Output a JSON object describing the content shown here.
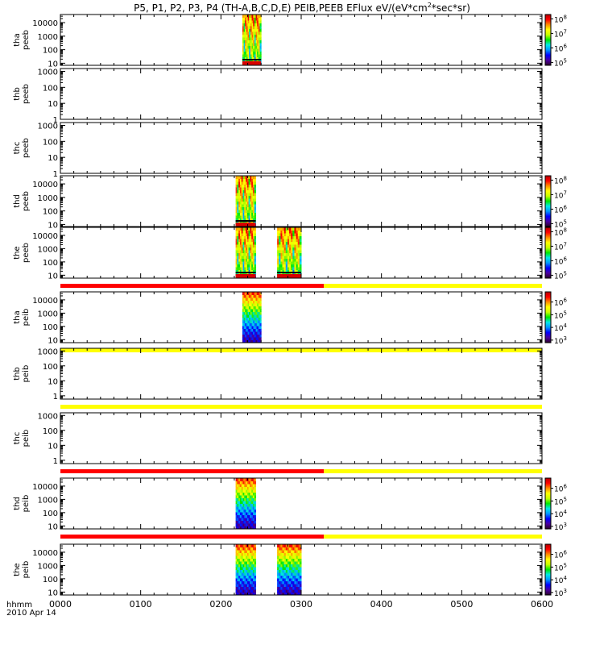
{
  "title": {
    "main": "P5, P1, P2, P3, P4 (TH-A,B,C,D,E) PEIB,PEEB EFlux eV/(eV*cm",
    "sup": "2",
    "end": "*sec*sr)"
  },
  "colormap_stops": [
    "#2b0028",
    "#4a00a0",
    "#0000ff",
    "#0096ff",
    "#00e8e8",
    "#00e800",
    "#c8ff00",
    "#ffff00",
    "#ff8c00",
    "#ff0000",
    "#b40000"
  ],
  "state_colors": {
    "red": "#ff0000",
    "yellow": "#ffff00",
    "black": "#000000"
  },
  "xaxis": {
    "range_minutes": [
      0,
      360
    ],
    "ticks": [
      {
        "value": 0,
        "label": "0000"
      },
      {
        "value": 60,
        "label": "0100"
      },
      {
        "value": 120,
        "label": "0200"
      },
      {
        "value": 180,
        "label": "0300"
      },
      {
        "value": 240,
        "label": "0400"
      },
      {
        "value": 300,
        "label": "0500"
      },
      {
        "value": 360,
        "label": "0600"
      }
    ],
    "left_label": "hhmm",
    "date": "2010 Apr 14"
  },
  "chart_data": [
    {
      "type": "heatmap",
      "probe": "tha",
      "instrument": "peeb",
      "ylabel": [
        "tha",
        "peeb"
      ],
      "yscale": "log",
      "yrange": [
        7,
        40000
      ],
      "yticks": [
        {
          "v": 10,
          "label": "10"
        },
        {
          "v": 100,
          "label": "100"
        },
        {
          "v": 1000,
          "label": "1000"
        },
        {
          "v": 10000,
          "label": "10000"
        }
      ],
      "colorbar": {
        "labels": [
          {
            "e": 5,
            "label": "10",
            "sup": "5"
          },
          {
            "e": 6,
            "label": "10",
            "sup": "6"
          },
          {
            "e": 7,
            "label": "10",
            "sup": "7"
          },
          {
            "e": 8,
            "label": "10",
            "sup": "8"
          }
        ],
        "min_exp": 4.8,
        "max_exp": 8.3
      },
      "intervals": [
        {
          "t0": 136,
          "t1": 150,
          "low_red": true
        }
      ],
      "state_bar": null
    },
    {
      "type": "heatmap",
      "probe": "thb",
      "instrument": "peeb",
      "ylabel": [
        "thb",
        "peeb"
      ],
      "yscale": "log",
      "yrange": [
        1,
        1500
      ],
      "yticks": [
        {
          "v": 1,
          "label": "1"
        },
        {
          "v": 10,
          "label": "10"
        },
        {
          "v": 100,
          "label": "100"
        },
        {
          "v": 1000,
          "label": "1000"
        }
      ],
      "colorbar": null,
      "intervals": [],
      "state_bar": null
    },
    {
      "type": "heatmap",
      "probe": "thc",
      "instrument": "peeb",
      "ylabel": [
        "thc",
        "peeb"
      ],
      "yscale": "log",
      "yrange": [
        1,
        1500
      ],
      "yticks": [
        {
          "v": 1,
          "label": "1"
        },
        {
          "v": 10,
          "label": "10"
        },
        {
          "v": 100,
          "label": "100"
        },
        {
          "v": 1000,
          "label": "1000"
        }
      ],
      "colorbar": null,
      "intervals": [],
      "state_bar": null
    },
    {
      "type": "heatmap",
      "probe": "thd",
      "instrument": "peeb",
      "ylabel": [
        "thd",
        "peeb"
      ],
      "yscale": "log",
      "yrange": [
        7,
        40000
      ],
      "yticks": [
        {
          "v": 10,
          "label": "10"
        },
        {
          "v": 100,
          "label": "100"
        },
        {
          "v": 1000,
          "label": "1000"
        },
        {
          "v": 10000,
          "label": "10000"
        }
      ],
      "colorbar": {
        "labels": [
          {
            "e": 5,
            "label": "10",
            "sup": "5"
          },
          {
            "e": 6,
            "label": "10",
            "sup": "6"
          },
          {
            "e": 7,
            "label": "10",
            "sup": "7"
          },
          {
            "e": 8,
            "label": "10",
            "sup": "8"
          }
        ],
        "min_exp": 4.8,
        "max_exp": 8.3
      },
      "intervals": [
        {
          "t0": 131,
          "t1": 146,
          "low_red": true
        }
      ],
      "state_bar": null
    },
    {
      "type": "heatmap",
      "probe": "the",
      "instrument": "peeb",
      "ylabel": [
        "the",
        "peeb"
      ],
      "yscale": "log",
      "yrange": [
        6,
        40000
      ],
      "yticks": [
        {
          "v": 10,
          "label": "10"
        },
        {
          "v": 100,
          "label": "100"
        },
        {
          "v": 1000,
          "label": "1000"
        },
        {
          "v": 10000,
          "label": "10000"
        }
      ],
      "colorbar": {
        "labels": [
          {
            "e": 5,
            "label": "10",
            "sup": "5"
          },
          {
            "e": 6,
            "label": "10",
            "sup": "6"
          },
          {
            "e": 7,
            "label": "10",
            "sup": "7"
          },
          {
            "e": 8,
            "label": "10",
            "sup": "8"
          }
        ],
        "min_exp": 4.8,
        "max_exp": 8.3
      },
      "intervals": [
        {
          "t0": 131,
          "t1": 146,
          "low_red": true
        },
        {
          "t0": 162,
          "t1": 180,
          "low_red": true
        }
      ],
      "state_bar": {
        "segments": [
          {
            "t0": 0,
            "t1": 197,
            "color": "red"
          },
          {
            "t0": 197,
            "t1": 360,
            "color": "yellow"
          }
        ]
      }
    },
    {
      "type": "heatmap",
      "probe": "tha",
      "instrument": "peib",
      "ylabel": [
        "tha",
        "peib"
      ],
      "yscale": "log",
      "yrange": [
        6,
        40000
      ],
      "yticks": [
        {
          "v": 10,
          "label": "10"
        },
        {
          "v": 100,
          "label": "100"
        },
        {
          "v": 1000,
          "label": "1000"
        },
        {
          "v": 10000,
          "label": "10000"
        }
      ],
      "colorbar": {
        "labels": [
          {
            "e": 3,
            "label": "10",
            "sup": "3"
          },
          {
            "e": 4,
            "label": "10",
            "sup": "4"
          },
          {
            "e": 5,
            "label": "10",
            "sup": "5"
          },
          {
            "e": 6,
            "label": "10",
            "sup": "6"
          }
        ],
        "min_exp": 2.8,
        "max_exp": 6.8
      },
      "intervals": [
        {
          "t0": 136,
          "t1": 150,
          "low_red": false
        }
      ],
      "state_bar": {
        "segments": [
          {
            "t0": 0,
            "t1": 360,
            "color": "yellow"
          }
        ]
      }
    },
    {
      "type": "heatmap",
      "probe": "thb",
      "instrument": "peib",
      "ylabel": [
        "thb",
        "peib"
      ],
      "yscale": "log",
      "yrange": [
        0.6,
        1500
      ],
      "yticks": [
        {
          "v": 1,
          "label": "1"
        },
        {
          "v": 10,
          "label": "10"
        },
        {
          "v": 100,
          "label": "100"
        },
        {
          "v": 1000,
          "label": "1000"
        }
      ],
      "colorbar": null,
      "intervals": [],
      "state_bar": {
        "segments": [
          {
            "t0": 0,
            "t1": 360,
            "color": "yellow"
          }
        ]
      }
    },
    {
      "type": "heatmap",
      "probe": "thc",
      "instrument": "peib",
      "ylabel": [
        "thc",
        "peib"
      ],
      "yscale": "log",
      "yrange": [
        0.6,
        1500
      ],
      "yticks": [
        {
          "v": 1,
          "label": "1"
        },
        {
          "v": 10,
          "label": "10"
        },
        {
          "v": 100,
          "label": "100"
        },
        {
          "v": 1000,
          "label": "1000"
        }
      ],
      "colorbar": null,
      "intervals": [],
      "state_bar": {
        "segments": [
          {
            "t0": 0,
            "t1": 197,
            "color": "red"
          },
          {
            "t0": 197,
            "t1": 360,
            "color": "yellow"
          }
        ]
      }
    },
    {
      "type": "heatmap",
      "probe": "thd",
      "instrument": "peib",
      "ylabel": [
        "thd",
        "peib"
      ],
      "yscale": "log",
      "yrange": [
        6,
        40000
      ],
      "yticks": [
        {
          "v": 10,
          "label": "10"
        },
        {
          "v": 100,
          "label": "100"
        },
        {
          "v": 1000,
          "label": "1000"
        },
        {
          "v": 10000,
          "label": "10000"
        }
      ],
      "colorbar": {
        "labels": [
          {
            "e": 3,
            "label": "10",
            "sup": "3"
          },
          {
            "e": 4,
            "label": "10",
            "sup": "4"
          },
          {
            "e": 5,
            "label": "10",
            "sup": "5"
          },
          {
            "e": 6,
            "label": "10",
            "sup": "6"
          }
        ],
        "min_exp": 2.8,
        "max_exp": 6.8
      },
      "intervals": [
        {
          "t0": 131,
          "t1": 146,
          "low_red": false
        }
      ],
      "state_bar": {
        "segments": [
          {
            "t0": 0,
            "t1": 197,
            "color": "red"
          },
          {
            "t0": 197,
            "t1": 360,
            "color": "yellow"
          }
        ]
      }
    },
    {
      "type": "heatmap",
      "probe": "the",
      "instrument": "peib",
      "ylabel": [
        "the",
        "peib"
      ],
      "yscale": "log",
      "yrange": [
        6,
        40000
      ],
      "yticks": [
        {
          "v": 10,
          "label": "10"
        },
        {
          "v": 100,
          "label": "100"
        },
        {
          "v": 1000,
          "label": "1000"
        },
        {
          "v": 10000,
          "label": "10000"
        }
      ],
      "colorbar": {
        "labels": [
          {
            "e": 3,
            "label": "10",
            "sup": "3"
          },
          {
            "e": 4,
            "label": "10",
            "sup": "4"
          },
          {
            "e": 5,
            "label": "10",
            "sup": "5"
          },
          {
            "e": 6,
            "label": "10",
            "sup": "6"
          }
        ],
        "min_exp": 2.8,
        "max_exp": 6.8
      },
      "intervals": [
        {
          "t0": 131,
          "t1": 146,
          "low_red": false
        },
        {
          "t0": 162,
          "t1": 180,
          "low_red": false
        }
      ],
      "state_bar": null
    }
  ]
}
